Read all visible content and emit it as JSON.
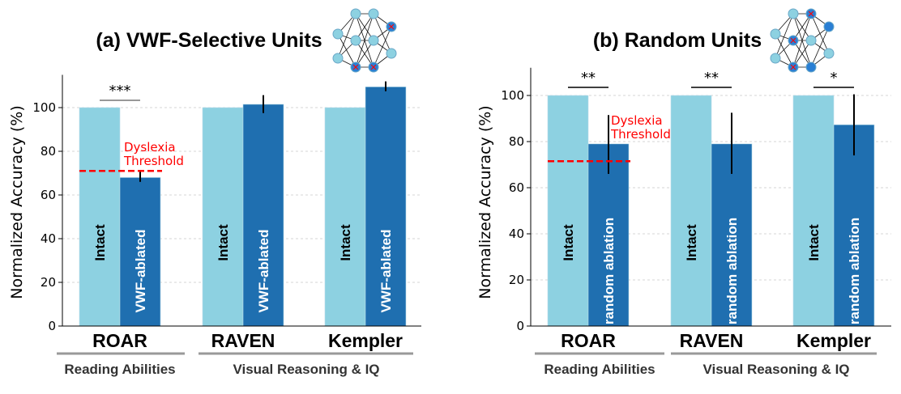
{
  "chart_data": [
    {
      "type": "bar",
      "title": "(a) VWF-Selective Units",
      "ylabel": "Normalized Accuracy (%)",
      "ylim": [
        0,
        115
      ],
      "yticks": [
        "0",
        "20",
        "40",
        "60",
        "80",
        "100"
      ],
      "grid": true,
      "categories": [
        "ROAR",
        "RAVEN",
        "Kempler"
      ],
      "groups": [
        {
          "label": "Reading Abilities",
          "categories": [
            "ROAR"
          ]
        },
        {
          "label": "Visual Reasoning & IQ",
          "categories": [
            "RAVEN",
            "Kempler"
          ]
        }
      ],
      "series": [
        {
          "name": "Intact",
          "color": "#8dd1e1",
          "values": [
            100,
            100,
            100
          ]
        },
        {
          "name": "VWF-ablated",
          "color": "#1f6fb0",
          "values": [
            68,
            101.5,
            109.5
          ],
          "err_low": [
            66,
            97.5,
            107.5
          ],
          "err_high": [
            71,
            105.7,
            112
          ]
        }
      ],
      "significance": [
        "***",
        "",
        ""
      ],
      "threshold": {
        "label_line1": "Dyslexia",
        "label_line2": "Threshold",
        "value": 71,
        "color": "#ff0000"
      },
      "icon": {
        "name": "neural-network-icon",
        "ablated_nodes": "selective"
      }
    },
    {
      "type": "bar",
      "title": "(b) Random Units",
      "ylabel": "Normalized Accuracy (%)",
      "ylim": [
        0,
        112
      ],
      "yticks": [
        "0",
        "20",
        "40",
        "60",
        "80",
        "100"
      ],
      "grid": true,
      "categories": [
        "ROAR",
        "RAVEN",
        "Kempler"
      ],
      "groups": [
        {
          "label": "Reading Abilities",
          "categories": [
            "ROAR"
          ]
        },
        {
          "label": "Visual Reasoning & IQ",
          "categories": [
            "RAVEN",
            "Kempler"
          ]
        }
      ],
      "series": [
        {
          "name": "Intact",
          "color": "#8dd1e1",
          "values": [
            100,
            100,
            100
          ]
        },
        {
          "name": "random ablation",
          "color": "#1f6fb0",
          "values": [
            79,
            79,
            87.3
          ],
          "err_low": [
            66,
            66,
            74
          ],
          "err_high": [
            91.5,
            92.5,
            100.5
          ]
        }
      ],
      "significance": [
        "**",
        "**",
        "*"
      ],
      "threshold": {
        "label_line1": "Dyslexia",
        "label_line2": "Threshold",
        "value": 71.5,
        "color": "#ff0000"
      },
      "icon": {
        "name": "neural-network-icon",
        "ablated_nodes": "random"
      }
    }
  ]
}
